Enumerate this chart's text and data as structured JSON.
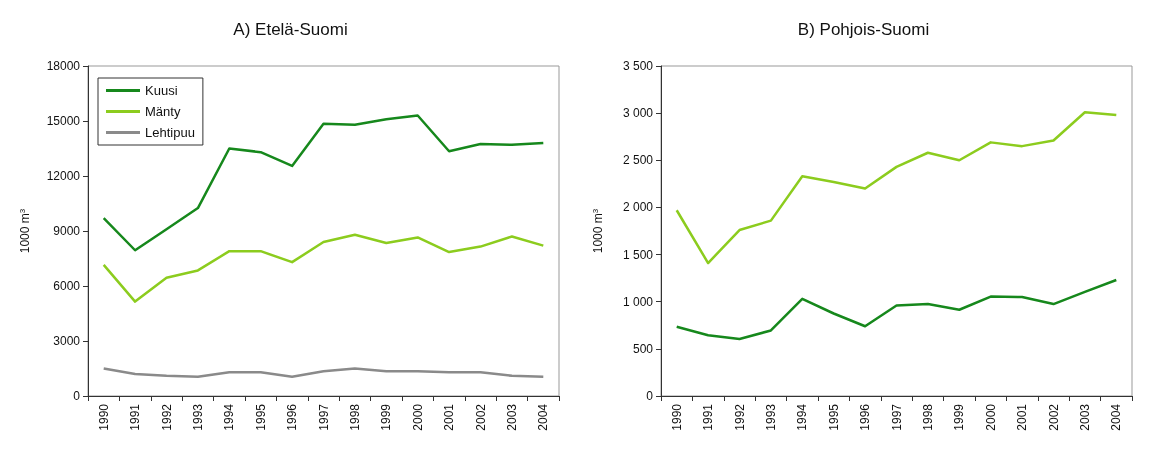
{
  "chart_data": [
    {
      "type": "line",
      "title": "A) Etelä-Suomi",
      "ylabel": "1000 m$^{3}$",
      "legend": "top left",
      "categories": [
        "1990",
        "1991",
        "1992",
        "1993",
        "1994",
        "1995",
        "1996",
        "1997",
        "1998",
        "1999",
        "2000",
        "2001",
        "2002",
        "2003",
        "2004"
      ],
      "ylim": [
        0,
        18000
      ],
      "yticks": [
        0,
        3000,
        6000,
        9000,
        12000,
        15000,
        18000
      ],
      "series": [
        {
          "name": "Kuusi",
          "color": "#16881c",
          "values": [
            9700,
            7950,
            9100,
            10250,
            13500,
            13300,
            12550,
            14850,
            14800,
            15100,
            15300,
            13350,
            13750,
            13700,
            13800
          ]
        },
        {
          "name": "Mänty",
          "color": "#8ccc1e",
          "values": [
            7150,
            5150,
            6450,
            6850,
            7900,
            7900,
            7300,
            8400,
            8800,
            8350,
            8650,
            7850,
            8150,
            8700,
            8200
          ]
        },
        {
          "name": "Lehtipuu",
          "color": "#8a8a8a",
          "values": [
            1500,
            1200,
            1100,
            1050,
            1300,
            1300,
            1050,
            1350,
            1500,
            1350,
            1350,
            1300,
            1300,
            1100,
            1050
          ]
        }
      ]
    },
    {
      "type": "line",
      "title": "B) Pohjois-Suomi",
      "ylabel": "1000 m$^{3}$",
      "categories": [
        "1990",
        "1991",
        "1992",
        "1993",
        "1994",
        "1995",
        "1996",
        "1997",
        "1998",
        "1999",
        "2000",
        "2001",
        "2002",
        "2003",
        "2004"
      ],
      "ylim": [
        0,
        3500
      ],
      "yticks": [
        0,
        500,
        {
          "value": 1000,
          "label": "1 000"
        },
        {
          "value": 1500,
          "label": "1 500"
        },
        {
          "value": 2000,
          "label": "2 000"
        },
        {
          "value": 2500,
          "label": "2 500"
        },
        {
          "value": 3000,
          "label": "3 000"
        },
        {
          "value": 3500,
          "label": "3 500"
        }
      ],
      "series": [
        {
          "color": "#8ccc1e",
          "values": [
            1970,
            1410,
            1760,
            1860,
            2330,
            2270,
            2200,
            2430,
            2580,
            2500,
            2690,
            2650,
            2710,
            3010,
            2980
          ]
        },
        {
          "color": "#16881c",
          "values": [
            735,
            645,
            605,
            695,
            1030,
            875,
            740,
            960,
            975,
            915,
            1055,
            1050,
            975,
            1105,
            1230
          ]
        }
      ]
    }
  ]
}
